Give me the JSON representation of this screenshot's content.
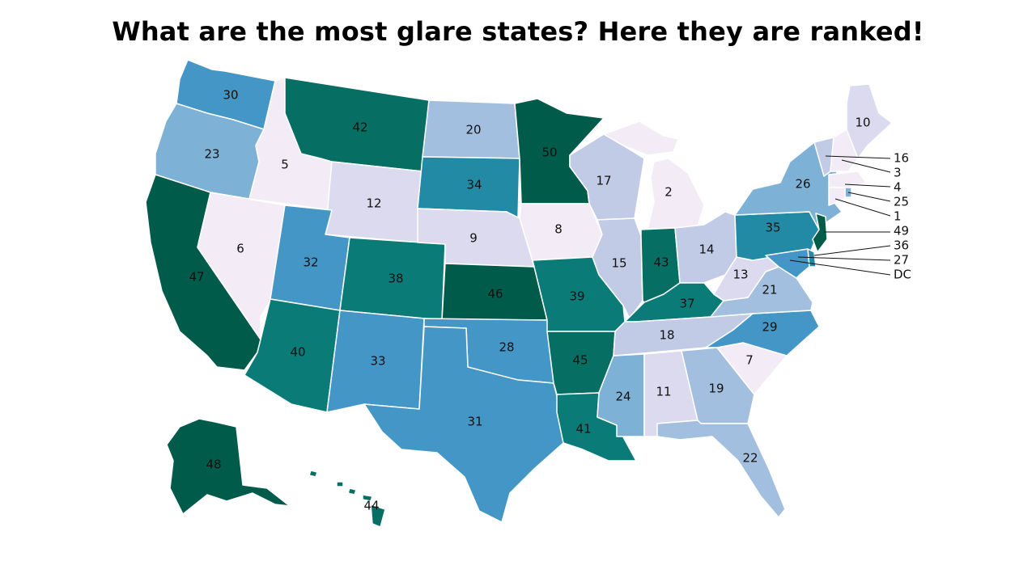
{
  "title": "What are the most glare states? Here they are ranked!",
  "palette": {
    "r1_8": "#f3ebf5",
    "r9_13": "#dcdaee",
    "r14_18": "#c2cbe6",
    "r19_23": "#a3bfdf",
    "r24_27": "#7eb1d6",
    "r28_33": "#4496c6",
    "r34_36": "#228aa5",
    "r37_41": "#0b7b78",
    "r42_45": "#076e63",
    "r46_50": "#005b4a"
  },
  "states": [
    {
      "name": "Washington",
      "rank": "30"
    },
    {
      "name": "Oregon",
      "rank": "23"
    },
    {
      "name": "California",
      "rank": "47"
    },
    {
      "name": "Idaho",
      "rank": "5"
    },
    {
      "name": "Nevada",
      "rank": "6"
    },
    {
      "name": "Montana",
      "rank": "42"
    },
    {
      "name": "Wyoming",
      "rank": "12"
    },
    {
      "name": "Utah",
      "rank": "32"
    },
    {
      "name": "Arizona",
      "rank": "40"
    },
    {
      "name": "Colorado",
      "rank": "38"
    },
    {
      "name": "New Mexico",
      "rank": "33"
    },
    {
      "name": "North Dakota",
      "rank": "20"
    },
    {
      "name": "South Dakota",
      "rank": "34"
    },
    {
      "name": "Nebraska",
      "rank": "9"
    },
    {
      "name": "Kansas",
      "rank": "46"
    },
    {
      "name": "Oklahoma",
      "rank": "28"
    },
    {
      "name": "Texas",
      "rank": "31"
    },
    {
      "name": "Minnesota",
      "rank": "50"
    },
    {
      "name": "Iowa",
      "rank": "8"
    },
    {
      "name": "Missouri",
      "rank": "39"
    },
    {
      "name": "Arkansas",
      "rank": "45"
    },
    {
      "name": "Louisiana",
      "rank": "41"
    },
    {
      "name": "Wisconsin",
      "rank": "17"
    },
    {
      "name": "Illinois",
      "rank": "15"
    },
    {
      "name": "Michigan",
      "rank": "2"
    },
    {
      "name": "Indiana",
      "rank": "43"
    },
    {
      "name": "Ohio",
      "rank": "14"
    },
    {
      "name": "Kentucky",
      "rank": "37"
    },
    {
      "name": "Tennessee",
      "rank": "18"
    },
    {
      "name": "Mississippi",
      "rank": "24"
    },
    {
      "name": "Alabama",
      "rank": "11"
    },
    {
      "name": "Georgia",
      "rank": "19"
    },
    {
      "name": "Florida",
      "rank": "22"
    },
    {
      "name": "South Carolina",
      "rank": "7"
    },
    {
      "name": "North Carolina",
      "rank": "29"
    },
    {
      "name": "Virginia",
      "rank": "21"
    },
    {
      "name": "West Virginia",
      "rank": "13"
    },
    {
      "name": "Pennsylvania",
      "rank": "35"
    },
    {
      "name": "New York",
      "rank": "26"
    },
    {
      "name": "Maine",
      "rank": "10"
    },
    {
      "name": "Alaska",
      "rank": "48"
    },
    {
      "name": "Hawaii",
      "rank": "44"
    }
  ],
  "callouts": [
    {
      "label": "16"
    },
    {
      "label": "3"
    },
    {
      "label": "4"
    },
    {
      "label": "25"
    },
    {
      "label": "1"
    },
    {
      "label": "49"
    },
    {
      "label": "36"
    },
    {
      "label": "27"
    },
    {
      "label": "DC"
    }
  ]
}
